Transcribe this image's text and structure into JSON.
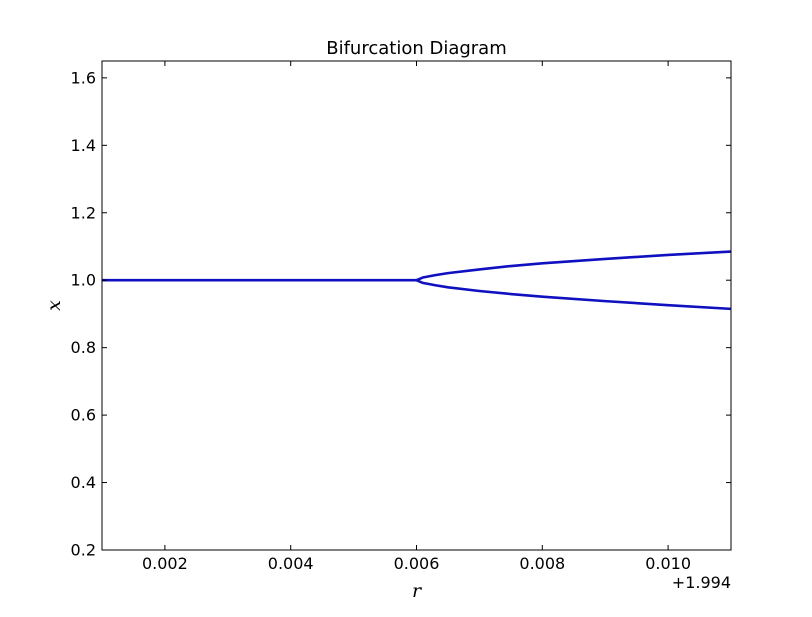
{
  "chart_data": {
    "type": "line",
    "title": "Bifurcation Diagram",
    "xlabel": "r",
    "ylabel": "x",
    "x_offset_label": "+1.994",
    "xlim": [
      1.995,
      2.005
    ],
    "ylim": [
      0.2,
      1.65
    ],
    "xticks": [
      1.996,
      1.998,
      2.0,
      2.002,
      2.004
    ],
    "xtick_labels": [
      "0.002",
      "0.004",
      "0.006",
      "0.008",
      "0.010"
    ],
    "yticks": [
      0.2,
      0.4,
      0.6,
      0.8,
      1.0,
      1.2,
      1.4,
      1.6
    ],
    "ytick_labels": [
      "0.2",
      "0.4",
      "0.6",
      "0.8",
      "1.0",
      "1.2",
      "1.4",
      "1.6"
    ],
    "grid": false,
    "series_color": "#1010c0",
    "series": [
      {
        "x": [
          1.995,
          1.996,
          1.997,
          1.998,
          1.999,
          2.0
        ],
        "y": [
          1.0,
          1.0,
          1.0,
          1.0,
          1.0,
          1.0
        ]
      },
      {
        "x": [
          2.0,
          2.0001,
          2.0003,
          2.0005,
          2.001,
          2.0015,
          2.002,
          2.003,
          2.004,
          2.005
        ],
        "y": [
          1.0,
          1.008,
          1.015,
          1.021,
          1.032,
          1.042,
          1.05,
          1.063,
          1.075,
          1.085
        ]
      },
      {
        "x": [
          2.0,
          2.0001,
          2.0003,
          2.0005,
          2.001,
          2.0015,
          2.002,
          2.003,
          2.004,
          2.005
        ],
        "y": [
          1.0,
          0.992,
          0.985,
          0.979,
          0.968,
          0.959,
          0.951,
          0.938,
          0.926,
          0.915
        ]
      }
    ]
  }
}
